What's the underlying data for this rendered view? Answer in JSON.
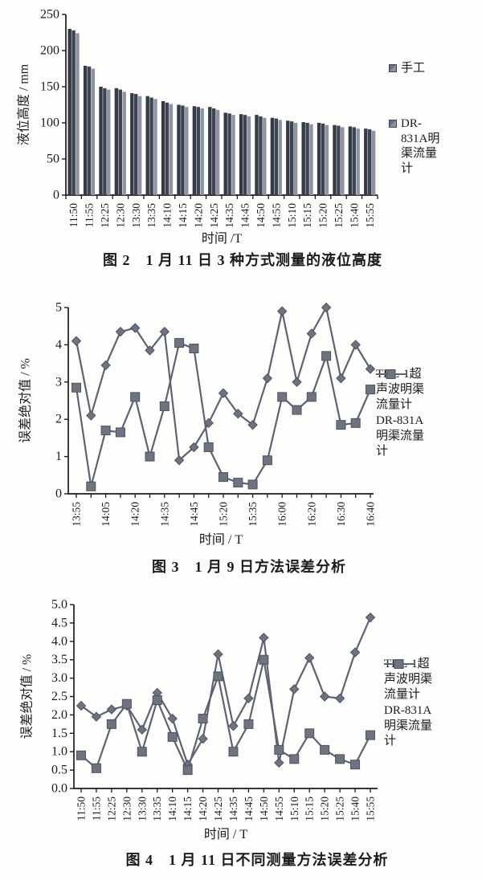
{
  "colors": {
    "axis": "#1c1c1c",
    "bar_dark": "#333a48",
    "bar_mid": "#3d4452",
    "bar_light": "#8d93a2",
    "line": "#5d6370",
    "marker_fill": "#6e7380",
    "marker_stroke": "#4d5260"
  },
  "figures": [
    {
      "caption": "图 2　1 月 11 日 3 种方式测量的液位高度",
      "legend": [
        {
          "label": "手工",
          "marker": "square-swatch"
        },
        {
          "label": "DR-831A明渠流量计",
          "marker": "square-swatch"
        }
      ],
      "chart_data": {
        "type": "bar",
        "title": "图 2　1 月 11 日 3 种方式测量的液位高度",
        "xlabel": "时间 /T",
        "ylabel": "液位高度 / mm",
        "ylim": [
          0,
          250
        ],
        "yticks": [
          "0",
          "50",
          "100",
          "150",
          "200",
          "250"
        ],
        "legend_position": "right",
        "categories": [
          "11:50",
          "11:55",
          "12:25",
          "12:30",
          "13:30",
          "13:35",
          "14:10",
          "14:15",
          "14:20",
          "14:25",
          "14:35",
          "14:45",
          "14:50",
          "14:55",
          "15:10",
          "15:15",
          "15:20",
          "15:25",
          "15:40",
          "15:55"
        ],
        "series": [
          {
            "name": "手工",
            "values": [
              230,
              179,
              150,
              148,
              141,
              137,
              130,
              125,
              123,
              122,
              114,
              112,
              111,
              107,
              103,
              101,
              100,
              97,
              95,
              92
            ]
          },
          {
            "name": "",
            "values": [
              228,
              178,
              148,
              146,
              140,
              135,
              128,
              124,
              122,
              120,
              113,
              111,
              109,
              106,
              102,
              100,
              99,
              96,
              94,
              91
            ]
          },
          {
            "name": "DR-831A明渠流量计",
            "values": [
              224,
              175,
              146,
              143,
              137,
              133,
              126,
              122,
              120,
              118,
              111,
              109,
              107,
              104,
              100,
              98,
              97,
              94,
              92,
              89
            ]
          }
        ]
      }
    },
    {
      "caption": "图 3　1 月 9 日方法误差分析",
      "legend": [
        {
          "label": "TKL-1超声波明渠流量计",
          "marker": "diamond-line"
        },
        {
          "label": "DR-831A明渠流量计",
          "marker": "square-line"
        }
      ],
      "chart_data": {
        "type": "line",
        "title": "图 3　1 月 9 日方法误差分析",
        "xlabel": "时间 / T",
        "ylabel": "误差绝对值 / %",
        "ylim": [
          0,
          5
        ],
        "yticks": [
          "0",
          "1",
          "2",
          "3",
          "4",
          "5"
        ],
        "legend_position": "right",
        "categories": [
          "13:55",
          "",
          "14:05",
          "",
          "14:20",
          "",
          "14:35",
          "",
          "14:45",
          "",
          "15:20",
          "",
          "15:35",
          "",
          "16:00",
          "",
          "16:20",
          "",
          "16:30",
          "",
          "16:40"
        ],
        "series": [
          {
            "name": "TKL-1超声波明渠流量计",
            "marker": "diamond",
            "values": [
              4.1,
              2.1,
              3.45,
              4.35,
              4.45,
              3.85,
              4.35,
              0.9,
              1.25,
              1.9,
              2.7,
              2.15,
              1.85,
              3.1,
              4.9,
              3.0,
              4.3,
              5.0,
              3.1,
              4.0,
              3.35
            ]
          },
          {
            "name": "DR-831A明渠流量计",
            "marker": "square",
            "values": [
              2.85,
              0.2,
              1.7,
              1.65,
              2.6,
              1.0,
              2.35,
              4.05,
              3.9,
              1.25,
              0.45,
              0.3,
              0.25,
              0.9,
              2.6,
              2.25,
              2.6,
              3.7,
              1.85,
              1.9,
              2.8
            ]
          }
        ]
      }
    },
    {
      "caption": "图 4　1 月 11 日不同测量方法误差分析",
      "legend": [
        {
          "label": "TKL-1超声波明渠流量计",
          "marker": "diamond-line"
        },
        {
          "label": "DR-831A明渠流量计",
          "marker": "square-line"
        }
      ],
      "chart_data": {
        "type": "line",
        "title": "图 4　1 月 11 日不同测量方法误差分析",
        "xlabel": "时间 / T",
        "ylabel": "误差绝对值 / %",
        "ylim": [
          0,
          5
        ],
        "yticks": [
          "0.0",
          "0.5",
          "1.0",
          "1.5",
          "2.0",
          "2.5",
          "3.0",
          "3.5",
          "4.0",
          "4.5",
          "5.0"
        ],
        "legend_position": "right",
        "categories": [
          "11:50",
          "11:55",
          "12:25",
          "12:30",
          "13:30",
          "13:35",
          "14:10",
          "14:15",
          "14:20",
          "14:25",
          "14:35",
          "14:45",
          "14:50",
          "14:55",
          "15:10",
          "15:15",
          "15:20",
          "15:25",
          "15:40",
          "15:55"
        ],
        "series": [
          {
            "name": "TKL-1超声波明渠流量计",
            "marker": "diamond",
            "values": [
              2.25,
              1.95,
              2.15,
              2.25,
              1.6,
              2.6,
              1.9,
              0.65,
              1.35,
              3.65,
              1.7,
              2.45,
              4.1,
              0.7,
              2.7,
              3.55,
              2.5,
              2.45,
              3.7,
              4.65
            ]
          },
          {
            "name": "DR-831A明渠流量计",
            "marker": "square",
            "values": [
              0.9,
              0.55,
              1.75,
              2.3,
              1.0,
              2.4,
              1.4,
              0.5,
              1.9,
              3.05,
              1.0,
              1.75,
              3.5,
              1.05,
              0.8,
              1.5,
              1.05,
              0.8,
              0.65,
              1.45
            ]
          }
        ]
      }
    }
  ]
}
